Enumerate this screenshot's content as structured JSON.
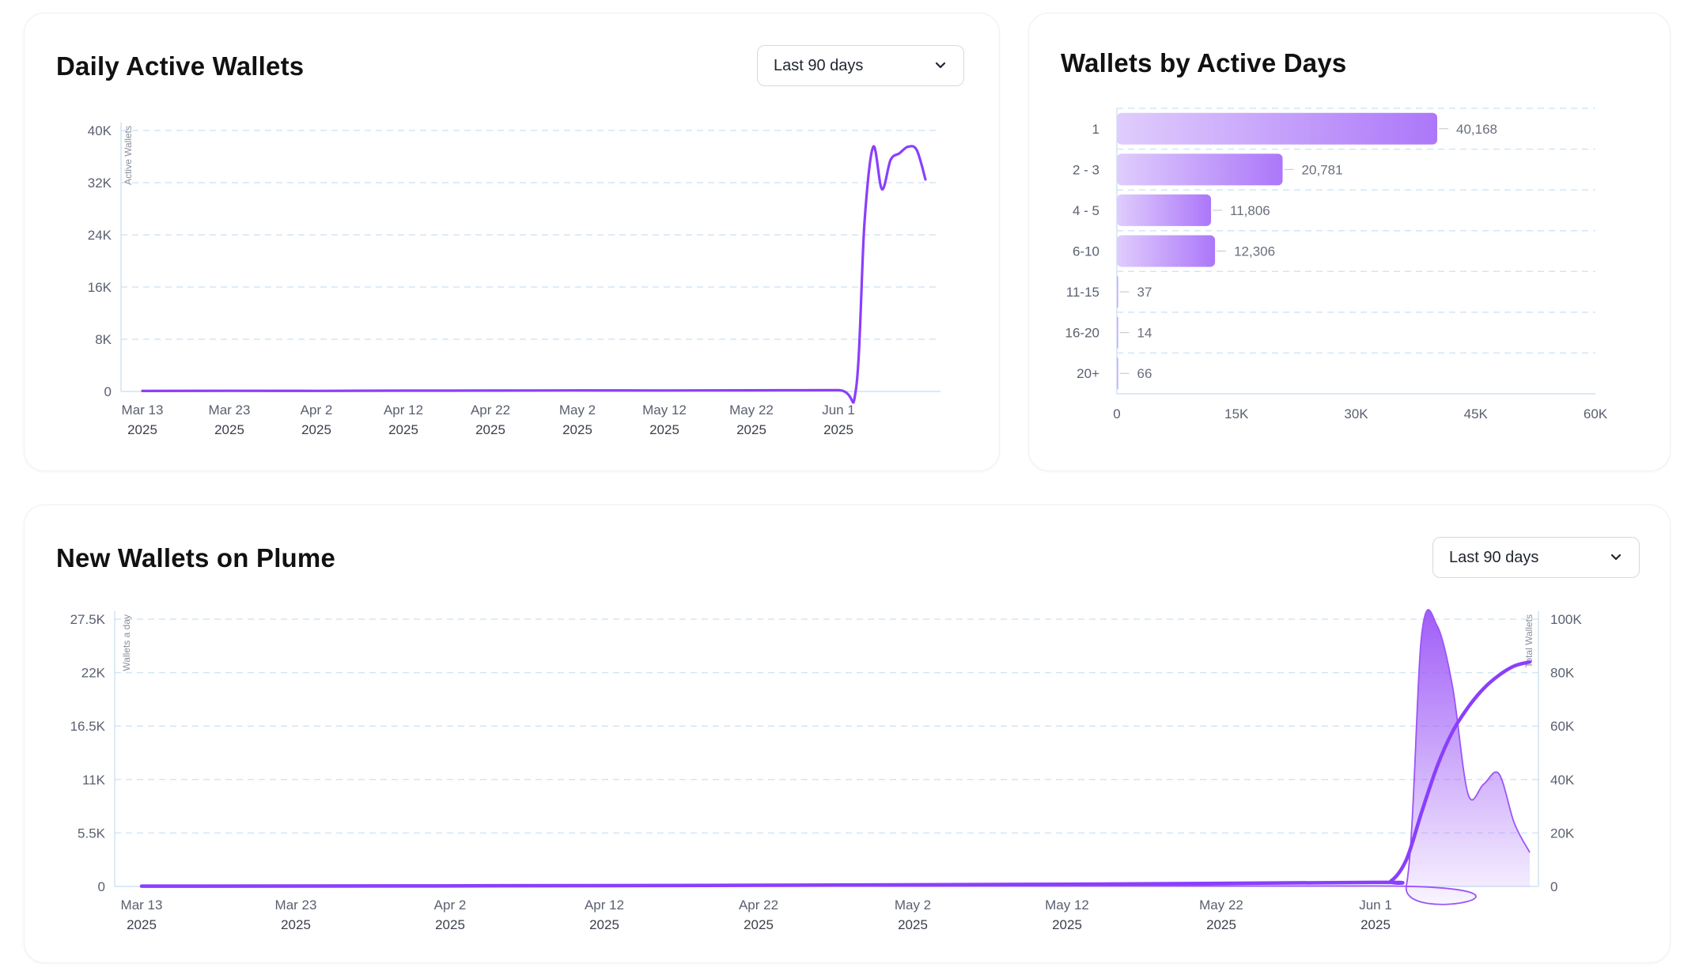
{
  "cards": {
    "daily": {
      "title": "Daily Active Wallets",
      "dropdown": "Last 90 days"
    },
    "days": {
      "title": "Wallets by Active Days"
    },
    "new": {
      "title": "New Wallets on Plume",
      "dropdown": "Last 90 days"
    }
  },
  "icons": {
    "dropdown": "chevron-down-icon"
  },
  "colors": {
    "accent": "#8a3ffc",
    "accent_light": "#d9c3fd",
    "grid": "#d3e6f6",
    "axis": "#cfe3f4",
    "tick": "#5a6070"
  },
  "chart_data": [
    {
      "type": "line",
      "ylabel": "Active Wallets",
      "ylim": [
        0,
        40000
      ],
      "y_ticks": [
        "0",
        "8K",
        "16K",
        "24K",
        "32K",
        "40K"
      ],
      "y_tick_values": [
        0,
        8000,
        16000,
        24000,
        32000,
        40000
      ],
      "x_ticks": [
        {
          "label": "Mar 13",
          "year": "2025",
          "date": "2025-03-13"
        },
        {
          "label": "Mar 23",
          "year": "2025",
          "date": "2025-03-23"
        },
        {
          "label": "Apr 2",
          "year": "2025",
          "date": "2025-04-02"
        },
        {
          "label": "Apr 12",
          "year": "2025",
          "date": "2025-04-12"
        },
        {
          "label": "Apr 22",
          "year": "2025",
          "date": "2025-04-22"
        },
        {
          "label": "May 2",
          "year": "2025",
          "date": "2025-05-02"
        },
        {
          "label": "May 12",
          "year": "2025",
          "date": "2025-05-12"
        },
        {
          "label": "May 22",
          "year": "2025",
          "date": "2025-05-22"
        },
        {
          "label": "Jun 1",
          "year": "2025",
          "date": "2025-06-01"
        }
      ],
      "grid": true,
      "series": [
        {
          "x": [
            "2025-03-13",
            "2025-03-23",
            "2025-04-02",
            "2025-04-12",
            "2025-04-22",
            "2025-05-02",
            "2025-05-12",
            "2025-05-22",
            "2025-06-01",
            "2025-06-03",
            "2025-06-04",
            "2025-06-05",
            "2025-06-06",
            "2025-06-07",
            "2025-06-08",
            "2025-06-09",
            "2025-06-10",
            "2025-06-11"
          ],
          "y": [
            80,
            100,
            90,
            120,
            130,
            160,
            150,
            170,
            200,
            200,
            26000,
            37500,
            31000,
            35500,
            36500,
            37500,
            37000,
            32500
          ]
        }
      ]
    },
    {
      "type": "bar",
      "orientation": "horizontal",
      "categories": [
        "1",
        "2 - 3",
        "4 - 5",
        "6-10",
        "11-15",
        "16-20",
        "20+"
      ],
      "values": [
        40168,
        20781,
        11806,
        12306,
        37,
        14,
        66
      ],
      "value_labels": [
        "40,168",
        "20,781",
        "11,806",
        "12,306",
        "37",
        "14",
        "66"
      ],
      "xlim": [
        0,
        60000
      ],
      "x_ticks": [
        "0",
        "15K",
        "30K",
        "45K",
        "60K"
      ],
      "x_tick_values": [
        0,
        15000,
        30000,
        45000,
        60000
      ],
      "grid": true
    },
    {
      "type": "area",
      "ylabel": "Wallets a day",
      "y2label": "Total Wallets",
      "ylim": [
        0,
        27500
      ],
      "y2lim": [
        0,
        100000
      ],
      "y_ticks": [
        "0",
        "5.5K",
        "11K",
        "16.5K",
        "22K",
        "27.5K"
      ],
      "y_tick_values": [
        0,
        5500,
        11000,
        16500,
        22000,
        27500
      ],
      "y2_ticks": [
        "0",
        "20K",
        "40K",
        "60K",
        "80K",
        "100K"
      ],
      "y2_tick_values": [
        0,
        20000,
        40000,
        60000,
        80000,
        100000
      ],
      "x_ticks": [
        {
          "label": "Mar 13",
          "year": "2025",
          "date": "2025-03-13"
        },
        {
          "label": "Mar 23",
          "year": "2025",
          "date": "2025-03-23"
        },
        {
          "label": "Apr 2",
          "year": "2025",
          "date": "2025-04-02"
        },
        {
          "label": "Apr 12",
          "year": "2025",
          "date": "2025-04-12"
        },
        {
          "label": "Apr 22",
          "year": "2025",
          "date": "2025-04-22"
        },
        {
          "label": "May 2",
          "year": "2025",
          "date": "2025-05-02"
        },
        {
          "label": "May 12",
          "year": "2025",
          "date": "2025-05-12"
        },
        {
          "label": "May 22",
          "year": "2025",
          "date": "2025-05-22"
        },
        {
          "label": "Jun 1",
          "year": "2025",
          "date": "2025-06-01"
        }
      ],
      "grid": true,
      "series": [
        {
          "axis": "left",
          "kind": "area",
          "x": [
            "2025-03-13",
            "2025-06-01",
            "2025-06-03",
            "2025-06-04",
            "2025-06-05",
            "2025-06-06",
            "2025-06-07",
            "2025-06-08",
            "2025-06-09",
            "2025-06-10",
            "2025-06-11"
          ],
          "y": [
            20,
            50,
            80,
            26000,
            26800,
            20500,
            9500,
            10500,
            11600,
            6500,
            3500
          ]
        },
        {
          "axis": "right",
          "kind": "line",
          "x": [
            "2025-03-13",
            "2025-04-12",
            "2025-05-12",
            "2025-06-01",
            "2025-06-02",
            "2025-06-03",
            "2025-06-04",
            "2025-06-05",
            "2025-06-06",
            "2025-06-07",
            "2025-06-08",
            "2025-06-09",
            "2025-06-10",
            "2025-06-11"
          ],
          "y": [
            100,
            300,
            800,
            1500,
            2000,
            10000,
            28000,
            45000,
            58000,
            67000,
            74000,
            79000,
            82500,
            84000
          ]
        }
      ]
    }
  ]
}
